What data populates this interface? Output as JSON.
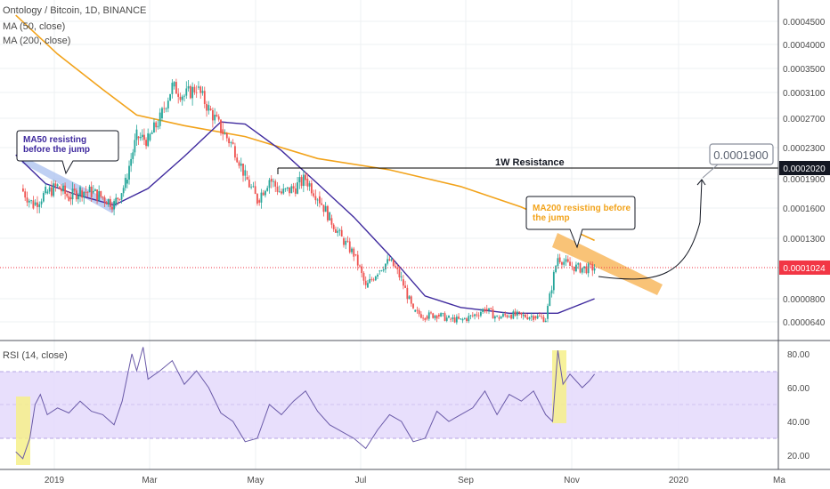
{
  "header": {
    "title": "Ontology / Bitcoin, 1D, BINANCE",
    "ma50_label": "MA (50, close)",
    "ma200_label": "MA (200, close)",
    "rsi_label": "RSI (14, close)"
  },
  "colors": {
    "candle_up": "#26a69a",
    "candle_down": "#ef5350",
    "ma50": "#3f2a9e",
    "ma200": "#f2a31b",
    "rsi_line": "#6a5aa8",
    "rsi_band": "#e4d9fb",
    "annotation_orange": "#f7b455",
    "annotation_blue": "#a9c0ef",
    "highlight_yellow": "#f6f08a",
    "last_price_bg": "#f23645",
    "resistance_bg": "#131722"
  },
  "annotations": {
    "ma50_box": "MA50 resisting before the jump",
    "ma200_box": "MA200 resisting before the jump",
    "resistance_label": "1W Resistance",
    "target_label": "0.0001900",
    "resistance_value": "0.0002020",
    "last_price": "0.0001024"
  },
  "chart_data": [
    {
      "type": "candlestick",
      "title": "Ontology / Bitcoin, 1D, BINANCE",
      "x_tick_labels": [
        "2019",
        "Mar",
        "May",
        "Jul",
        "Sep",
        "Nov",
        "2020",
        "Ma"
      ],
      "y_tick_labels": [
        "0.0004500",
        "0.0004000",
        "0.0003500",
        "0.0003100",
        "0.0002700",
        "0.0002300",
        "0.0001900",
        "0.0001600",
        "0.0001300",
        "0.0000800",
        "0.0000640"
      ],
      "ylim": [
        6e-05,
        0.00052
      ],
      "series": [
        {
          "name": "Price",
          "points": [
            [
              "2018-12-13",
              0.00018
            ],
            [
              "2018-12-20",
              0.000163
            ],
            [
              "2018-12-27",
              0.000175
            ],
            [
              "2019-01-03",
              0.000182
            ],
            [
              "2019-01-10",
              0.000171
            ],
            [
              "2019-01-17",
              0.000178
            ],
            [
              "2019-01-24",
              0.000176
            ],
            [
              "2019-01-31",
              0.000171
            ],
            [
              "2019-02-07",
              0.000164
            ],
            [
              "2019-02-14",
              0.000185
            ],
            [
              "2019-02-21",
              0.000245
            ],
            [
              "2019-02-28",
              0.00024
            ],
            [
              "2019-03-07",
              0.00027
            ],
            [
              "2019-03-14",
              0.00032
            ],
            [
              "2019-03-21",
              0.000305
            ],
            [
              "2019-03-28",
              0.000318
            ],
            [
              "2019-04-04",
              0.000285
            ],
            [
              "2019-04-11",
              0.000255
            ],
            [
              "2019-04-18",
              0.000232
            ],
            [
              "2019-04-25",
              0.000192
            ],
            [
              "2019-05-02",
              0.000168
            ],
            [
              "2019-05-09",
              0.00019
            ],
            [
              "2019-05-16",
              0.000175
            ],
            [
              "2019-05-23",
              0.00018
            ],
            [
              "2019-05-30",
              0.00019
            ],
            [
              "2019-06-06",
              0.000172
            ],
            [
              "2019-06-13",
              0.00015
            ],
            [
              "2019-06-20",
              0.00013
            ],
            [
              "2019-06-27",
              0.000115
            ],
            [
              "2019-07-04",
              8.8e-05
            ],
            [
              "2019-07-11",
              0.0001
            ],
            [
              "2019-07-18",
              0.000109
            ],
            [
              "2019-07-25",
              9.4e-05
            ],
            [
              "2019-08-01",
              7.1e-05
            ],
            [
              "2019-08-08",
              6.8e-05
            ],
            [
              "2019-08-15",
              6.9e-05
            ],
            [
              "2019-08-22",
              6.6e-05
            ],
            [
              "2019-08-29",
              6.5e-05
            ],
            [
              "2019-09-05",
              6.8e-05
            ],
            [
              "2019-09-12",
              7.3e-05
            ],
            [
              "2019-09-19",
              6.7e-05
            ],
            [
              "2019-09-26",
              6.9e-05
            ],
            [
              "2019-10-03",
              6.8e-05
            ],
            [
              "2019-10-10",
              6.8e-05
            ],
            [
              "2019-10-17",
              6.6e-05
            ],
            [
              "2019-10-24",
              0.000112
            ],
            [
              "2019-10-31",
              0.000104
            ],
            [
              "2019-11-07",
              0.000102
            ],
            [
              "2019-11-14",
              0.0001024
            ]
          ]
        },
        {
          "name": "MA (50, close)",
          "points": [
            [
              "2018-12-10",
              0.00022
            ],
            [
              "2018-12-27",
              0.000185
            ],
            [
              "2019-01-14",
              0.000174
            ],
            [
              "2019-02-07",
              0.000163
            ],
            [
              "2019-02-28",
              0.00018
            ],
            [
              "2019-03-21",
              0.000218
            ],
            [
              "2019-04-11",
              0.000265
            ],
            [
              "2019-04-25",
              0.000262
            ],
            [
              "2019-05-16",
              0.000226
            ],
            [
              "2019-06-06",
              0.000185
            ],
            [
              "2019-06-27",
              0.000151
            ],
            [
              "2019-07-18",
              0.000114
            ],
            [
              "2019-08-08",
              8.2e-05
            ],
            [
              "2019-08-29",
              7.4e-05
            ],
            [
              "2019-09-26",
              7e-05
            ],
            [
              "2019-10-24",
              7e-05
            ],
            [
              "2019-11-14",
              8e-05
            ]
          ]
        },
        {
          "name": "MA (200, close)",
          "points": [
            [
              "2018-12-10",
              0.00047
            ],
            [
              "2019-01-03",
              0.00038
            ],
            [
              "2019-01-31",
              0.000315
            ],
            [
              "2019-02-21",
              0.000275
            ],
            [
              "2019-03-21",
              0.00026
            ],
            [
              "2019-04-25",
              0.000245
            ],
            [
              "2019-06-06",
              0.000215
            ],
            [
              "2019-07-18",
              0.0002
            ],
            [
              "2019-08-29",
              0.000182
            ],
            [
              "2019-10-03",
              0.000161
            ],
            [
              "2019-11-14",
              0.000128
            ]
          ]
        },
        {
          "name": "1W Resistance",
          "points": [
            [
              "2019-05-02",
              0.000202
            ],
            [
              "2019-12-31",
              0.000202
            ]
          ]
        }
      ]
    },
    {
      "type": "line",
      "title": "RSI (14, close)",
      "y_tick_labels": [
        "80.00",
        "60.00",
        "40.00",
        "20.00"
      ],
      "ylim": [
        14,
        90
      ],
      "band": [
        30,
        70
      ],
      "series": [
        {
          "name": "RSI (14, close)",
          "points": [
            [
              "2018-12-10",
              22
            ],
            [
              "2018-12-14",
              18
            ],
            [
              "2018-12-18",
              30
            ],
            [
              "2018-12-21",
              50
            ],
            [
              "2018-12-24",
              56
            ],
            [
              "2018-12-28",
              44
            ],
            [
              "2019-01-03",
              48
            ],
            [
              "2019-01-10",
              45
            ],
            [
              "2019-01-17",
              52
            ],
            [
              "2019-01-24",
              46
            ],
            [
              "2019-01-31",
              44
            ],
            [
              "2019-02-07",
              38
            ],
            [
              "2019-02-12",
              52
            ],
            [
              "2019-02-18",
              80
            ],
            [
              "2019-02-21",
              70
            ],
            [
              "2019-02-25",
              84
            ],
            [
              "2019-02-28",
              65
            ],
            [
              "2019-03-07",
              70
            ],
            [
              "2019-03-14",
              76
            ],
            [
              "2019-03-21",
              62
            ],
            [
              "2019-03-28",
              70
            ],
            [
              "2019-04-04",
              60
            ],
            [
              "2019-04-11",
              45
            ],
            [
              "2019-04-18",
              40
            ],
            [
              "2019-04-25",
              28
            ],
            [
              "2019-05-02",
              30
            ],
            [
              "2019-05-09",
              50
            ],
            [
              "2019-05-16",
              44
            ],
            [
              "2019-05-23",
              52
            ],
            [
              "2019-05-30",
              58
            ],
            [
              "2019-06-06",
              46
            ],
            [
              "2019-06-13",
              38
            ],
            [
              "2019-06-20",
              34
            ],
            [
              "2019-06-27",
              30
            ],
            [
              "2019-07-04",
              24
            ],
            [
              "2019-07-11",
              35
            ],
            [
              "2019-07-18",
              44
            ],
            [
              "2019-07-25",
              40
            ],
            [
              "2019-08-01",
              28
            ],
            [
              "2019-08-08",
              30
            ],
            [
              "2019-08-15",
              46
            ],
            [
              "2019-08-22",
              40
            ],
            [
              "2019-08-29",
              44
            ],
            [
              "2019-09-05",
              48
            ],
            [
              "2019-09-12",
              58
            ],
            [
              "2019-09-19",
              44
            ],
            [
              "2019-09-26",
              56
            ],
            [
              "2019-10-03",
              52
            ],
            [
              "2019-10-10",
              58
            ],
            [
              "2019-10-17",
              44
            ],
            [
              "2019-10-21",
              40
            ],
            [
              "2019-10-24",
              82
            ],
            [
              "2019-10-27",
              62
            ],
            [
              "2019-10-31",
              68
            ],
            [
              "2019-11-07",
              60
            ],
            [
              "2019-11-11",
              64
            ],
            [
              "2019-11-14",
              68
            ]
          ]
        }
      ]
    }
  ]
}
